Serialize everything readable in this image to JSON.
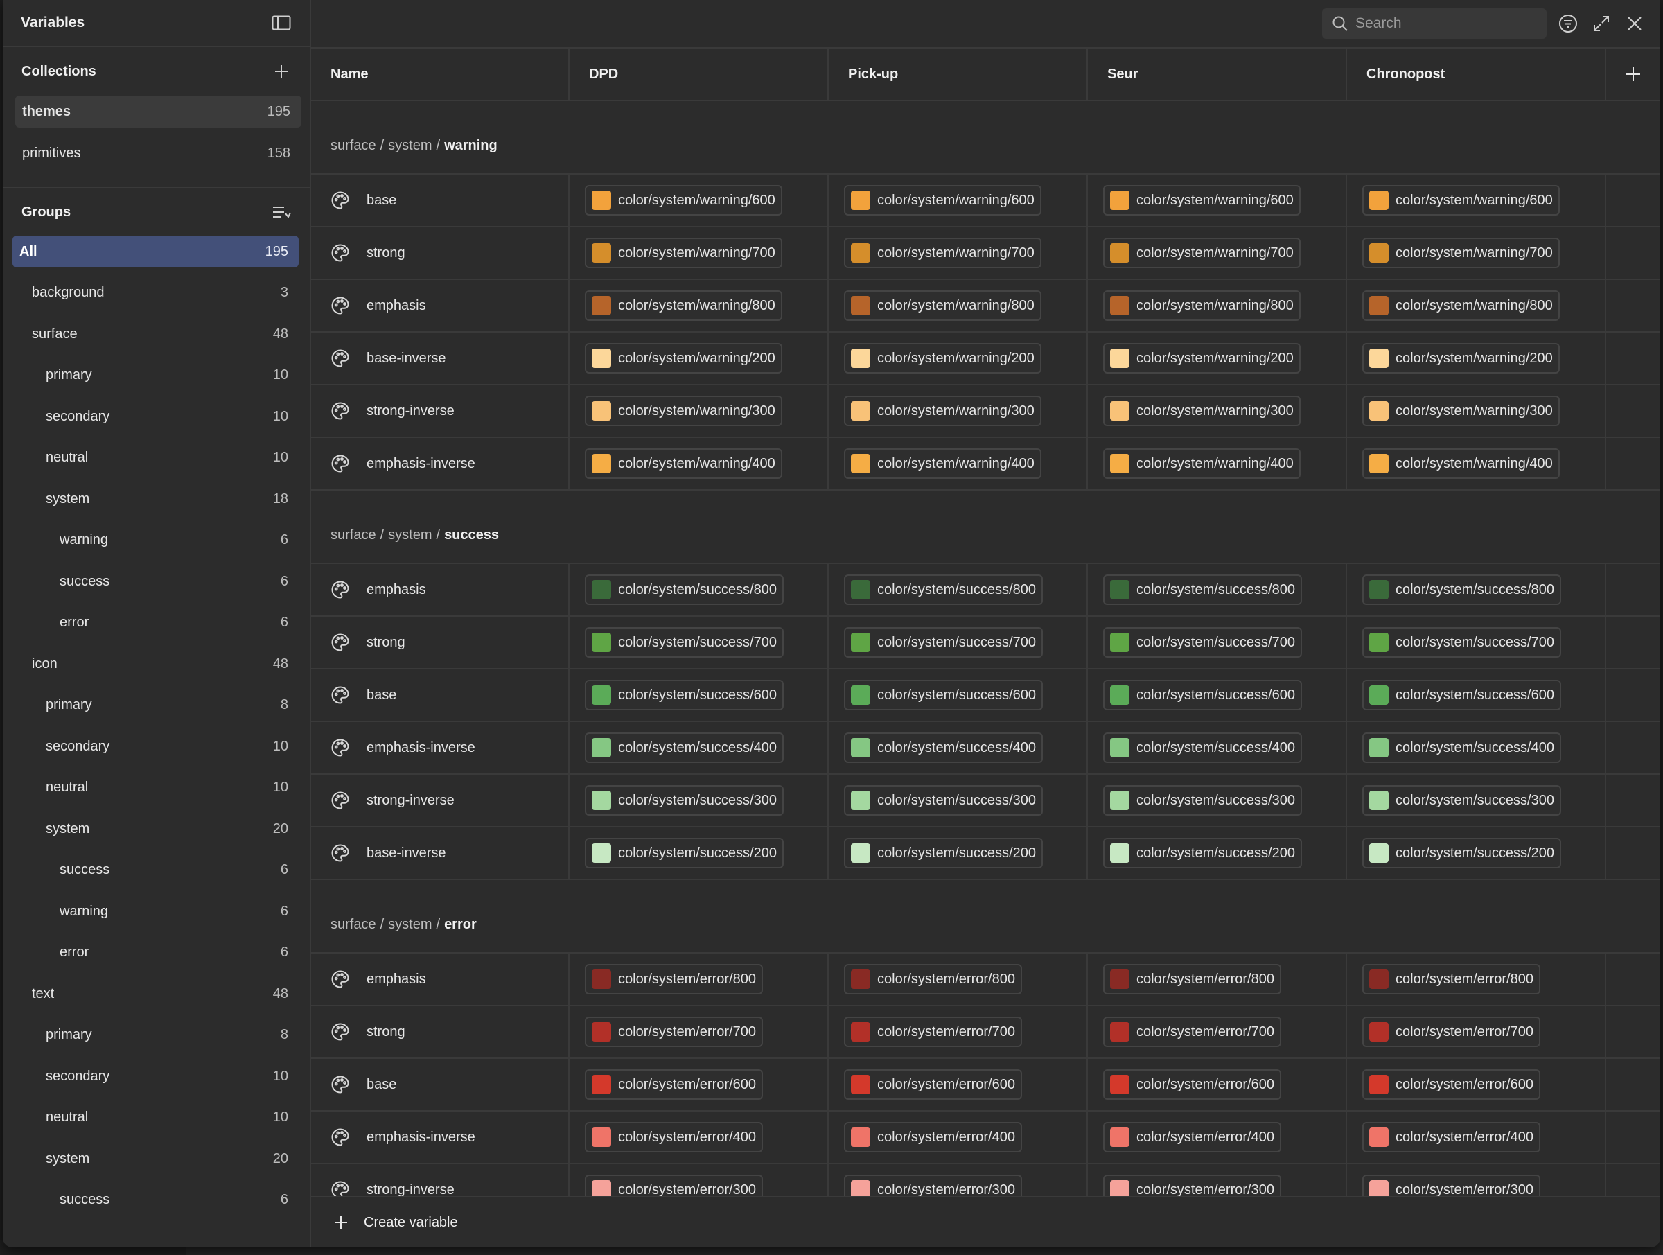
{
  "window": {
    "title": "Variables"
  },
  "collections": {
    "title": "Collections",
    "items": [
      {
        "label": "themes",
        "count": "195"
      },
      {
        "label": "primitives",
        "count": "158"
      }
    ]
  },
  "groups": {
    "title": "Groups",
    "items": [
      {
        "label": "All",
        "count": "195",
        "level": 0
      },
      {
        "label": "background",
        "count": "3",
        "level": 1
      },
      {
        "label": "surface",
        "count": "48",
        "level": 1
      },
      {
        "label": "primary",
        "count": "10",
        "level": 2
      },
      {
        "label": "secondary",
        "count": "10",
        "level": 2
      },
      {
        "label": "neutral",
        "count": "10",
        "level": 2
      },
      {
        "label": "system",
        "count": "18",
        "level": 2
      },
      {
        "label": "warning",
        "count": "6",
        "level": 3
      },
      {
        "label": "success",
        "count": "6",
        "level": 3
      },
      {
        "label": "error",
        "count": "6",
        "level": 3
      },
      {
        "label": "icon",
        "count": "48",
        "level": 1
      },
      {
        "label": "primary",
        "count": "8",
        "level": 2
      },
      {
        "label": "secondary",
        "count": "10",
        "level": 2
      },
      {
        "label": "neutral",
        "count": "10",
        "level": 2
      },
      {
        "label": "system",
        "count": "20",
        "level": 2
      },
      {
        "label": "success",
        "count": "6",
        "level": 3
      },
      {
        "label": "warning",
        "count": "6",
        "level": 3
      },
      {
        "label": "error",
        "count": "6",
        "level": 3
      },
      {
        "label": "text",
        "count": "48",
        "level": 1
      },
      {
        "label": "primary",
        "count": "8",
        "level": 2
      },
      {
        "label": "secondary",
        "count": "10",
        "level": 2
      },
      {
        "label": "neutral",
        "count": "10",
        "level": 2
      },
      {
        "label": "system",
        "count": "20",
        "level": 2
      },
      {
        "label": "success",
        "count": "6",
        "level": 3
      }
    ]
  },
  "search": {
    "placeholder": "Search"
  },
  "columns": [
    "Name",
    "DPD",
    "Pick-up",
    "Seur",
    "Chronopost"
  ],
  "sections": [
    {
      "path": [
        "surface",
        "system"
      ],
      "leaf": "warning",
      "rows": [
        {
          "name": "base",
          "value": "color/system/warning/600",
          "color": "#f2a23c"
        },
        {
          "name": "strong",
          "value": "color/system/warning/700",
          "color": "#d58e2b"
        },
        {
          "name": "emphasis",
          "value": "color/system/warning/800",
          "color": "#b6642a"
        },
        {
          "name": "base-inverse",
          "value": "color/system/warning/200",
          "color": "#fcd79a"
        },
        {
          "name": "strong-inverse",
          "value": "color/system/warning/300",
          "color": "#f8c278"
        },
        {
          "name": "emphasis-inverse",
          "value": "color/system/warning/400",
          "color": "#f5ad45"
        }
      ]
    },
    {
      "path": [
        "surface",
        "system"
      ],
      "leaf": "success",
      "rows": [
        {
          "name": "emphasis",
          "value": "color/system/success/800",
          "color": "#3a6a3a"
        },
        {
          "name": "strong",
          "value": "color/system/success/700",
          "color": "#5fa545"
        },
        {
          "name": "base",
          "value": "color/system/success/600",
          "color": "#5bab58"
        },
        {
          "name": "emphasis-inverse",
          "value": "color/system/success/400",
          "color": "#85c783"
        },
        {
          "name": "strong-inverse",
          "value": "color/system/success/300",
          "color": "#a4d8a0"
        },
        {
          "name": "base-inverse",
          "value": "color/system/success/200",
          "color": "#c7e8c3"
        }
      ]
    },
    {
      "path": [
        "surface",
        "system"
      ],
      "leaf": "error",
      "rows": [
        {
          "name": "emphasis",
          "value": "color/system/error/800",
          "color": "#892a24"
        },
        {
          "name": "strong",
          "value": "color/system/error/700",
          "color": "#b23028"
        },
        {
          "name": "base",
          "value": "color/system/error/600",
          "color": "#d4392b"
        },
        {
          "name": "emphasis-inverse",
          "value": "color/system/error/400",
          "color": "#ef7468"
        },
        {
          "name": "strong-inverse",
          "value": "color/system/error/300",
          "color": "#f5a29a"
        }
      ]
    }
  ],
  "footer": {
    "create_label": "Create variable"
  }
}
